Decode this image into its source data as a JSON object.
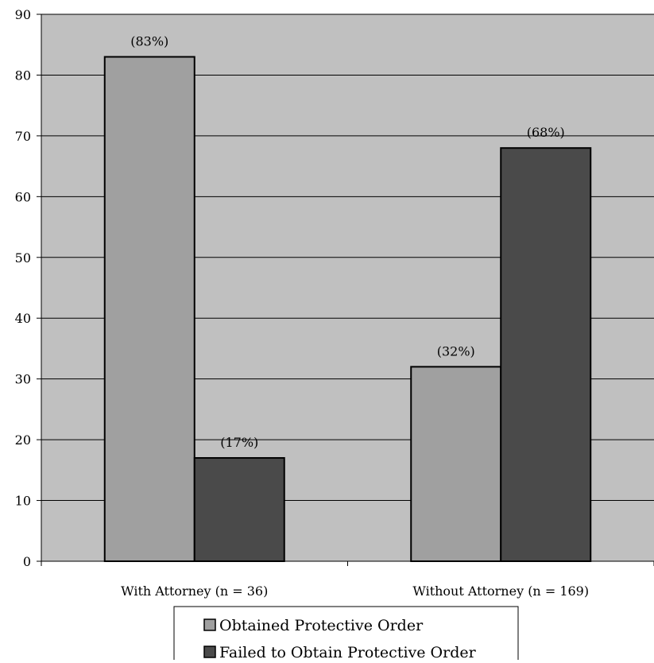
{
  "chart_data": {
    "type": "bar",
    "title": "",
    "xlabel": "",
    "ylabel": "",
    "categories": [
      "With Attorney (n = 36)",
      "Without Attorney (n = 169)"
    ],
    "series": [
      {
        "name": "Obtained Protective Order",
        "values": [
          83,
          32
        ],
        "labels": [
          "(83%)",
          "(32%)"
        ],
        "color": "#a0a0a0"
      },
      {
        "name": "Failed to Obtain Protective Order",
        "values": [
          17,
          68
        ],
        "labels": [
          "(17%)",
          "(68%)"
        ],
        "color": "#4a4a4a"
      }
    ],
    "ylim": [
      0,
      90
    ],
    "yticks": [
      0,
      10,
      20,
      30,
      40,
      50,
      60,
      70,
      80,
      90
    ],
    "grid": true,
    "plot_background": "#c0c0c0",
    "legend_position": "bottom"
  }
}
